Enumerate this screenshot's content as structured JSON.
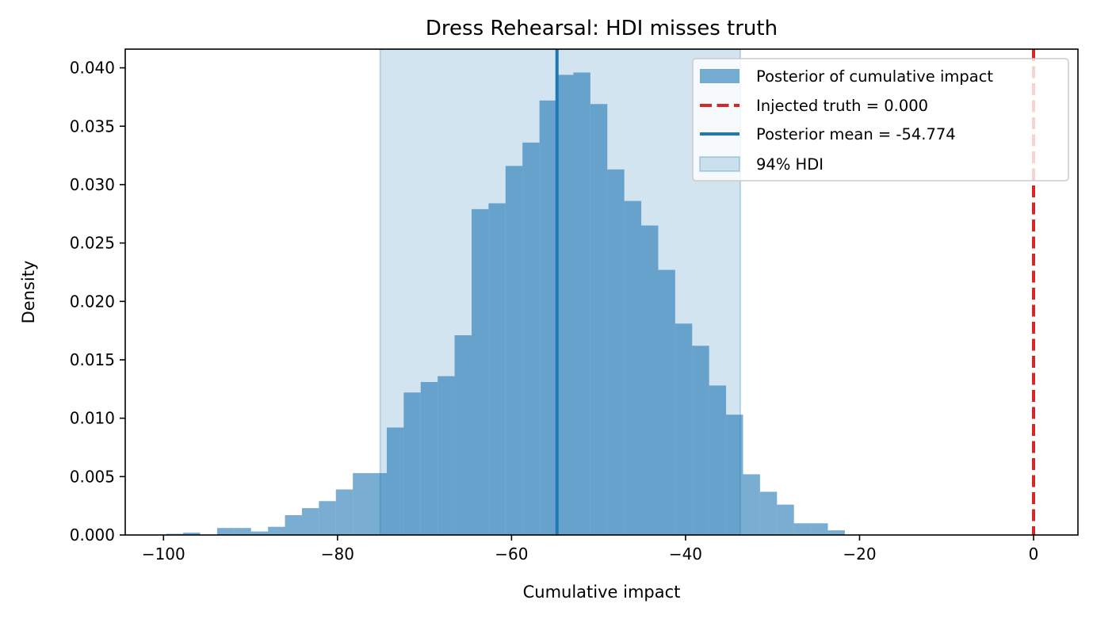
{
  "chart_data": {
    "type": "bar",
    "title": "Dress Rehearsal: HDI misses truth",
    "xlabel": "Cumulative impact",
    "ylabel": "Density",
    "xlim": [
      -104.4,
      5.1
    ],
    "ylim": [
      0,
      0.0416
    ],
    "xticks": [
      -100,
      -80,
      -60,
      -40,
      -20,
      0
    ],
    "xtick_labels": [
      "−100",
      "−80",
      "−60",
      "−40",
      "−20",
      "0"
    ],
    "yticks": [
      0.0,
      0.005,
      0.01,
      0.015,
      0.02,
      0.025,
      0.03,
      0.035,
      0.04
    ],
    "ytick_labels": [
      "0.000",
      "0.005",
      "0.010",
      "0.015",
      "0.020",
      "0.025",
      "0.030",
      "0.035",
      "0.040"
    ],
    "grid": false,
    "legend_position": "top-right",
    "histogram": {
      "name": "Posterior of cumulative impact",
      "color": "#1f77b4",
      "bin_width": 1.95,
      "bin_starts": [
        -99.69,
        -97.74,
        -95.79,
        -93.84,
        -91.89,
        -89.94,
        -87.99,
        -86.04,
        -84.09,
        -82.14,
        -80.19,
        -78.24,
        -76.29,
        -74.34,
        -72.39,
        -70.44,
        -68.49,
        -66.54,
        -64.59,
        -62.64,
        -60.69,
        -58.74,
        -56.79,
        -54.84,
        -52.89,
        -50.94,
        -48.99,
        -47.04,
        -45.09,
        -43.14,
        -41.19,
        -39.24,
        -37.29,
        -35.34,
        -33.39,
        -31.44,
        -29.49,
        -27.54,
        -25.59,
        -23.64
      ],
      "densities": [
        0.0001,
        0.0002,
        0.0,
        0.0006,
        0.0006,
        0.0003,
        0.0007,
        0.0017,
        0.0023,
        0.0029,
        0.0039,
        0.0053,
        0.0053,
        0.0092,
        0.0122,
        0.0131,
        0.0136,
        0.0171,
        0.0279,
        0.0284,
        0.0316,
        0.0336,
        0.0372,
        0.0394,
        0.0396,
        0.0369,
        0.0313,
        0.0286,
        0.0265,
        0.0227,
        0.0181,
        0.0162,
        0.0128,
        0.0103,
        0.0052,
        0.0037,
        0.0026,
        0.001,
        0.001,
        0.0004
      ]
    },
    "truth": {
      "label": "Injected truth = 0.000",
      "x": 0.0,
      "color": "#d62728"
    },
    "mean": {
      "label": "Posterior mean = -54.774",
      "x": -54.774,
      "color": "#1f77b4"
    },
    "hdi": {
      "label": "94% HDI",
      "low": -75.1,
      "high": -33.7,
      "color": "#1f77b4"
    }
  }
}
